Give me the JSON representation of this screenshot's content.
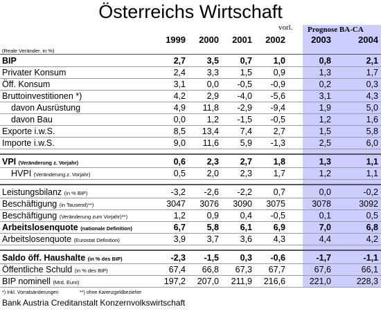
{
  "title": "Österreichs Wirtschaft",
  "header": {
    "note_2002": "vorl.",
    "forecast": "Prognose BA-CA",
    "years": [
      "1999",
      "2000",
      "2001",
      "2002",
      "2003",
      "2004"
    ],
    "unit": "(Reale Veränder. in %)"
  },
  "table": {
    "groups": [
      {
        "rows": [
          {
            "label": "BIP",
            "bold": true,
            "values": [
              "2,7",
              "3,5",
              "0,7",
              "1,0",
              "0,8",
              "2,1"
            ]
          },
          {
            "label": "Privater Konsum",
            "values": [
              "2,4",
              "3,3",
              "1,5",
              "0,9",
              "1,3",
              "1,7"
            ]
          },
          {
            "label": "Öff. Konsum",
            "values": [
              "3,1",
              "0,0",
              "-0,5",
              "-0,9",
              "0,2",
              "0,3"
            ]
          },
          {
            "label": "Bruttoinvestitionen *)",
            "values": [
              "4,2",
              "2,9",
              "-4,0",
              "-5,6",
              "3,1",
              "4,3"
            ]
          },
          {
            "label": "davon Ausrüstung",
            "indent": true,
            "values": [
              "4,9",
              "11,8",
              "-2,9",
              "-9,4",
              "1,9",
              "5,0"
            ]
          },
          {
            "label": "davon Bau",
            "indent": true,
            "values": [
              "0,0",
              "1,2",
              "-1,5",
              "-0,5",
              "1,2",
              "1,6"
            ]
          },
          {
            "label": "Exporte i.w.S.",
            "values": [
              "8,5",
              "13,4",
              "7,4",
              "2,7",
              "1,5",
              "5,8"
            ]
          },
          {
            "label": "Importe i.w.S.",
            "values": [
              "9,0",
              "11,6",
              "5,9",
              "-1,3",
              "2,5",
              "6,0"
            ]
          }
        ]
      },
      {
        "rows": [
          {
            "label": "VPI",
            "note": "(Veränderung z. Vorjahr)",
            "bold": true,
            "values": [
              "0,6",
              "2,3",
              "2,7",
              "1,8",
              "1,3",
              "1,1"
            ]
          },
          {
            "label": "HVPI",
            "note": "(Veränderung z. Vorjahr)",
            "indent": true,
            "values": [
              "0,5",
              "2,0",
              "2,3",
              "1,7",
              "1,2",
              "1,1"
            ]
          }
        ]
      },
      {
        "rows": [
          {
            "label": "Leistungsbilanz",
            "note": "(in % BIP)",
            "values": [
              "-3,2",
              "-2,6",
              "-2,2",
              "0,7",
              "0,0",
              "-0,2"
            ]
          },
          {
            "label": "Beschäftigung",
            "note": "(in Tausend)**)",
            "values": [
              "3047",
              "3076",
              "3090",
              "3075",
              "3078",
              "3092"
            ]
          },
          {
            "label": "Beschäftigung",
            "note": "(Veränderung zum Vorjahr)**)",
            "values": [
              "1,2",
              "0,9",
              "0,4",
              "-0,5",
              "0,1",
              "0,5"
            ]
          },
          {
            "label": "Arbeitslosenquote",
            "note": "(nationale Definition)",
            "bold": true,
            "values": [
              "6,7",
              "5,8",
              "6,1",
              "6,9",
              "7,0",
              "6,8"
            ]
          },
          {
            "label": "Arbeitslosenquote",
            "note": "(Eurostat Definition)",
            "values": [
              "3,9",
              "3,7",
              "3,6",
              "4,3",
              "4,4",
              "4,2"
            ]
          }
        ]
      },
      {
        "rows": [
          {
            "label": "Saldo öff. Haushalte",
            "note": "(in % des BIP)",
            "bold": true,
            "values": [
              "-2,3",
              "-1,5",
              "0,3",
              "-0,6",
              "-1,7",
              "-1,1"
            ]
          },
          {
            "label": "Öffentliche Schuld",
            "note": "(in % des BIP)",
            "values": [
              "67,4",
              "66,8",
              "67,3",
              "67,7",
              "67,6",
              "66,1"
            ]
          },
          {
            "label": "BIP nominell",
            "note": "(Mrd. Euro)",
            "values": [
              "197,2",
              "207,0",
              "211,9",
              "216,6",
              "221,0",
              "228,3"
            ]
          }
        ]
      }
    ]
  },
  "footnotes": [
    "*) Inkl. Vorratsänderungen",
    "**) ohne Karenzgeldbezieher"
  ],
  "source": "Bank Austria Creditanstalt Konzernvolkswirtschaft"
}
